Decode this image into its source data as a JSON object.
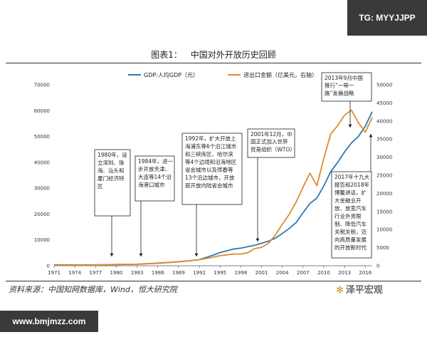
{
  "badge_top": "TG: MYYJJPP",
  "heading": {
    "label": "图表1：",
    "title": "中国对外开放历史回顾"
  },
  "source": "资料来源：中国知网数据库，Wind，恒大研究院",
  "brand": {
    "icon": "star-icon",
    "text": "泽平宏观"
  },
  "badge_bottom": "www.bmjmzz.com",
  "colors": {
    "gdp": "#2a7ab6",
    "trade": "#e08a2e"
  },
  "chart_data": {
    "type": "line",
    "x_ticks": [
      "1971",
      "1974",
      "1977",
      "1980",
      "1983",
      "1986",
      "1989",
      "1992",
      "1995",
      "1998",
      "2001",
      "2004",
      "2007",
      "2010",
      "2013",
      "2016"
    ],
    "y_left_ticks": [
      "0",
      "10000",
      "20000",
      "30000",
      "40000",
      "50000",
      "60000",
      "70000"
    ],
    "y_right_ticks": [
      "0",
      "5000",
      "10000",
      "15000",
      "20000",
      "25000",
      "30000",
      "35000",
      "40000",
      "45000",
      "50000"
    ],
    "ylim_left": [
      0,
      70000
    ],
    "ylim_right": [
      0,
      50000
    ],
    "xlim": [
      1971,
      2017
    ],
    "grid": false,
    "legend_position": "top",
    "series": [
      {
        "name": "GDP:人均GDP（元）",
        "axis": "left",
        "x": [
          1971,
          1974,
          1977,
          1980,
          1983,
          1986,
          1989,
          1992,
          1994,
          1995,
          1997,
          1998,
          2000,
          2001,
          2002,
          2003,
          2004,
          2005,
          2006,
          2007,
          2008,
          2009,
          2010,
          2011,
          2012,
          2013,
          2014,
          2015,
          2016,
          2017
        ],
        "y": [
          300,
          320,
          340,
          470,
          590,
          960,
          1520,
          2330,
          4100,
          5100,
          6500,
          6800,
          7900,
          8700,
          9500,
          10700,
          12500,
          14400,
          16700,
          20500,
          24100,
          26200,
          30900,
          36400,
          40000,
          44000,
          47500,
          50000,
          54000,
          59600
        ]
      },
      {
        "name": "进出口金额（亿美元，右轴）",
        "axis": "right",
        "x": [
          1971,
          1974,
          1977,
          1980,
          1983,
          1986,
          1989,
          1992,
          1994,
          1995,
          1997,
          1998,
          1999,
          2000,
          2001,
          2002,
          2003,
          2004,
          2005,
          2006,
          2007,
          2008,
          2009,
          2010,
          2011,
          2012,
          2013,
          2014,
          2015,
          2016,
          2017
        ],
        "y": [
          50,
          150,
          150,
          380,
          440,
          740,
          1120,
          1660,
          2370,
          2800,
          3250,
          3240,
          3600,
          4740,
          5100,
          6200,
          8500,
          11500,
          14200,
          17600,
          21700,
          25600,
          22100,
          29700,
          36400,
          38700,
          41600,
          43000,
          39500,
          36900,
          41000
        ]
      }
    ],
    "annotations": [
      {
        "text": [
          "1980年，设",
          "立深圳、珠",
          "海、汕头和",
          "厦门经济特",
          "区"
        ],
        "year": 1980
      },
      {
        "text": [
          "1984年，进一",
          "步开放天津、",
          "大连等14个沿",
          "海港口城市"
        ],
        "year": 1984
      },
      {
        "text": [
          "1992年，扩大开放上",
          "海浦东等6个沿江城市",
          "和三峡库区、哈尔滨",
          "等4个边境和沿海地区",
          "省会城市以及珲春等",
          "13个沿边城市，开放",
          "居开放内陆省会城市"
        ],
        "year": 1992
      },
      {
        "text": [
          "2001年12月，中",
          "国正式加入世界",
          "贸易组织（WTO）"
        ],
        "year": 2001
      },
      {
        "text": [
          "2013年9月中国",
          "推行“一带一",
          "路”发展战略"
        ],
        "year": 2014
      },
      {
        "text": [
          "2017年十九大",
          "报告和2018年",
          "博鳌讲话，扩",
          "大金融业开",
          "放、放宽汽车",
          "行业外资限",
          "制、降低汽车",
          "关税关税，迈",
          "向高质量发展",
          "的开放新时代"
        ],
        "year": 2017
      }
    ]
  }
}
